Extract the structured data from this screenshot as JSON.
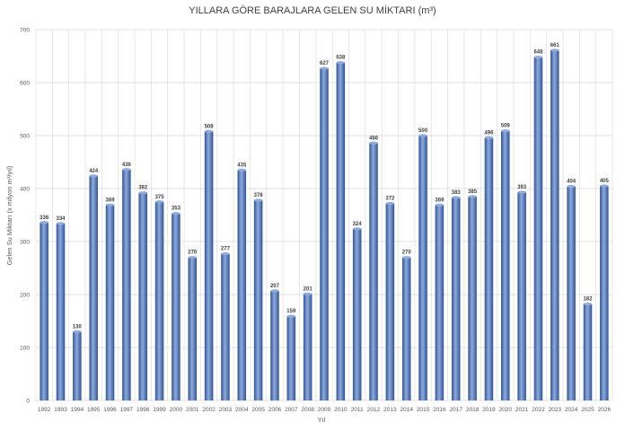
{
  "chart_data": {
    "type": "bar",
    "title": "YILLARA GÖRE BARAJLARA GELEN SU MİKTARI (m³)",
    "xlabel": "Yıl",
    "ylabel": "Gelen Su Miktarı (x milyon m³/yıl)",
    "ylim": [
      0,
      700
    ],
    "ytick_step": 100,
    "grid": true,
    "legend": "none",
    "categories": [
      "1992",
      "1993",
      "1994",
      "1995",
      "1996",
      "1997",
      "1998",
      "1999",
      "2000",
      "2001",
      "2002",
      "2003",
      "2004",
      "2005",
      "2006",
      "2007",
      "2008",
      "2009",
      "2010",
      "2011",
      "2012",
      "2013",
      "2014",
      "2015",
      "2016",
      "2017",
      "2018",
      "2019",
      "2020",
      "2021",
      "2022",
      "2023",
      "2024",
      "2025",
      "2026"
    ],
    "values": [
      336,
      334,
      130,
      424,
      369,
      436,
      392,
      375,
      353,
      270,
      508,
      277,
      435,
      378,
      207,
      159,
      201,
      627,
      638,
      324,
      486,
      372,
      270,
      500,
      369,
      383,
      385,
      496,
      509,
      393,
      648,
      661,
      404,
      182,
      405
    ],
    "colors": {
      "bar": "#4472c4",
      "bar_dark": "#2f5597",
      "bar_light": "#8faadc",
      "grid": "#d9d9d9"
    }
  }
}
